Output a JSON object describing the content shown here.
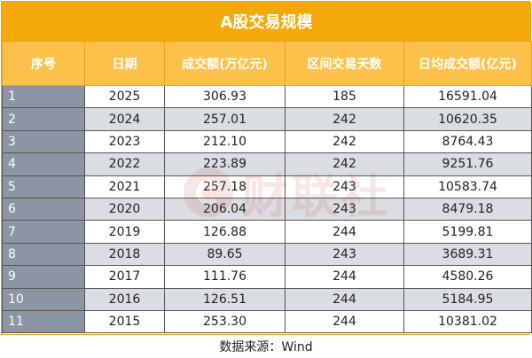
{
  "title": "A股交易规模",
  "headers": [
    "序号",
    "日期",
    "成交额(万亿元)",
    "区间交易天数",
    "日均成交额(亿元)"
  ],
  "rows": [
    {
      "idx": "1",
      "year": "2025",
      "turnover": "306.93",
      "days": "185",
      "daily": "16591.04"
    },
    {
      "idx": "2",
      "year": "2024",
      "turnover": "257.01",
      "days": "242",
      "daily": "10620.35"
    },
    {
      "idx": "3",
      "year": "2023",
      "turnover": "212.10",
      "days": "242",
      "daily": "8764.43"
    },
    {
      "idx": "4",
      "year": "2022",
      "turnover": "223.89",
      "days": "242",
      "daily": "9251.76"
    },
    {
      "idx": "5",
      "year": "2021",
      "turnover": "257.18",
      "days": "243",
      "daily": "10583.74"
    },
    {
      "idx": "6",
      "year": "2020",
      "turnover": "206.04",
      "days": "243",
      "daily": "8479.18"
    },
    {
      "idx": "7",
      "year": "2019",
      "turnover": "126.88",
      "days": "244",
      "daily": "5199.81"
    },
    {
      "idx": "8",
      "year": "2018",
      "turnover": "89.65",
      "days": "243",
      "daily": "3689.31"
    },
    {
      "idx": "9",
      "year": "2017",
      "turnover": "111.76",
      "days": "244",
      "daily": "4580.26"
    },
    {
      "idx": "10",
      "year": "2016",
      "turnover": "126.51",
      "days": "244",
      "daily": "5184.95"
    },
    {
      "idx": "11",
      "year": "2015",
      "turnover": "253.30",
      "days": "244",
      "daily": "10381.02"
    }
  ],
  "watermark_text": "财联社",
  "source": "数据来源：Wind",
  "colors": {
    "title_bg": "#f5a80a",
    "header_bg": "#fbc14a",
    "index_bg": "#8c95a3",
    "stripe": "#dadde2"
  }
}
